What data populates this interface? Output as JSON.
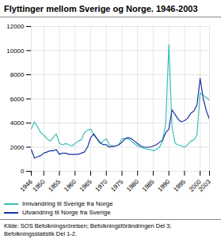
{
  "chart_data": {
    "type": "line",
    "title": "Flyttinger mellom Sverige og Norge. 1946-2003",
    "source": "Kilde: SOS Befolkningsrörelsen; Befolkningsförändringen Del 3;\nBefolkningsstatistik Del 1-2.",
    "x": [
      1946,
      1947,
      1948,
      1949,
      1950,
      1951,
      1952,
      1953,
      1954,
      1955,
      1956,
      1957,
      1958,
      1959,
      1960,
      1961,
      1962,
      1963,
      1964,
      1965,
      1966,
      1967,
      1968,
      1969,
      1970,
      1971,
      1972,
      1973,
      1974,
      1975,
      1976,
      1977,
      1978,
      1979,
      1980,
      1981,
      1982,
      1983,
      1984,
      1985,
      1986,
      1987,
      1988,
      1989,
      1990,
      1991,
      1992,
      1993,
      1994,
      1995,
      1996,
      1997,
      1998,
      1999,
      2000,
      2001,
      2002,
      2003
    ],
    "series": [
      {
        "name": "Innvandring til Sverige fra Norge",
        "color": "#3dbfb8",
        "values": [
          3500,
          4100,
          3700,
          3200,
          3000,
          2700,
          2500,
          2800,
          3100,
          2300,
          2200,
          2300,
          2200,
          2100,
          2300,
          2500,
          2600,
          3200,
          3400,
          3500,
          3000,
          2700,
          2300,
          2500,
          2700,
          2200,
          2000,
          2100,
          2200,
          2700,
          2700,
          2700,
          2500,
          2300,
          2100,
          2000,
          1900,
          1850,
          1800,
          1700,
          1800,
          2000,
          2500,
          4000,
          10500,
          3700,
          2300,
          2200,
          2100,
          2000,
          2200,
          2500,
          2600,
          3000,
          6500,
          6300,
          6100,
          5900
        ]
      },
      {
        "name": "Utvandring til Norge fra Sverige",
        "color": "#1a35a0",
        "values": [
          1800,
          1100,
          1200,
          1300,
          1500,
          1600,
          1700,
          1700,
          1800,
          1400,
          1500,
          1500,
          1400,
          1400,
          1400,
          1400,
          1500,
          1600,
          2000,
          2800,
          3100,
          2700,
          2400,
          2200,
          2200,
          2000,
          2100,
          2100,
          2200,
          2400,
          2700,
          2800,
          2700,
          2500,
          2300,
          2100,
          2000,
          2000,
          2000,
          2100,
          2200,
          2400,
          2600,
          3200,
          3500,
          5100,
          4700,
          4300,
          4100,
          4200,
          4400,
          4800,
          5000,
          5500,
          7700,
          6000,
          5000,
          4300
        ]
      }
    ],
    "xlim": [
      1946,
      2003
    ],
    "xticks": [
      1946,
      1950,
      1955,
      1960,
      1965,
      1970,
      1975,
      1980,
      1985,
      1990,
      1995,
      2000,
      2003
    ],
    "ylim": [
      0,
      12000
    ],
    "yticks": [
      0,
      2000,
      4000,
      6000,
      8000,
      10000,
      12000
    ],
    "grid": true,
    "legend": "bottom"
  }
}
